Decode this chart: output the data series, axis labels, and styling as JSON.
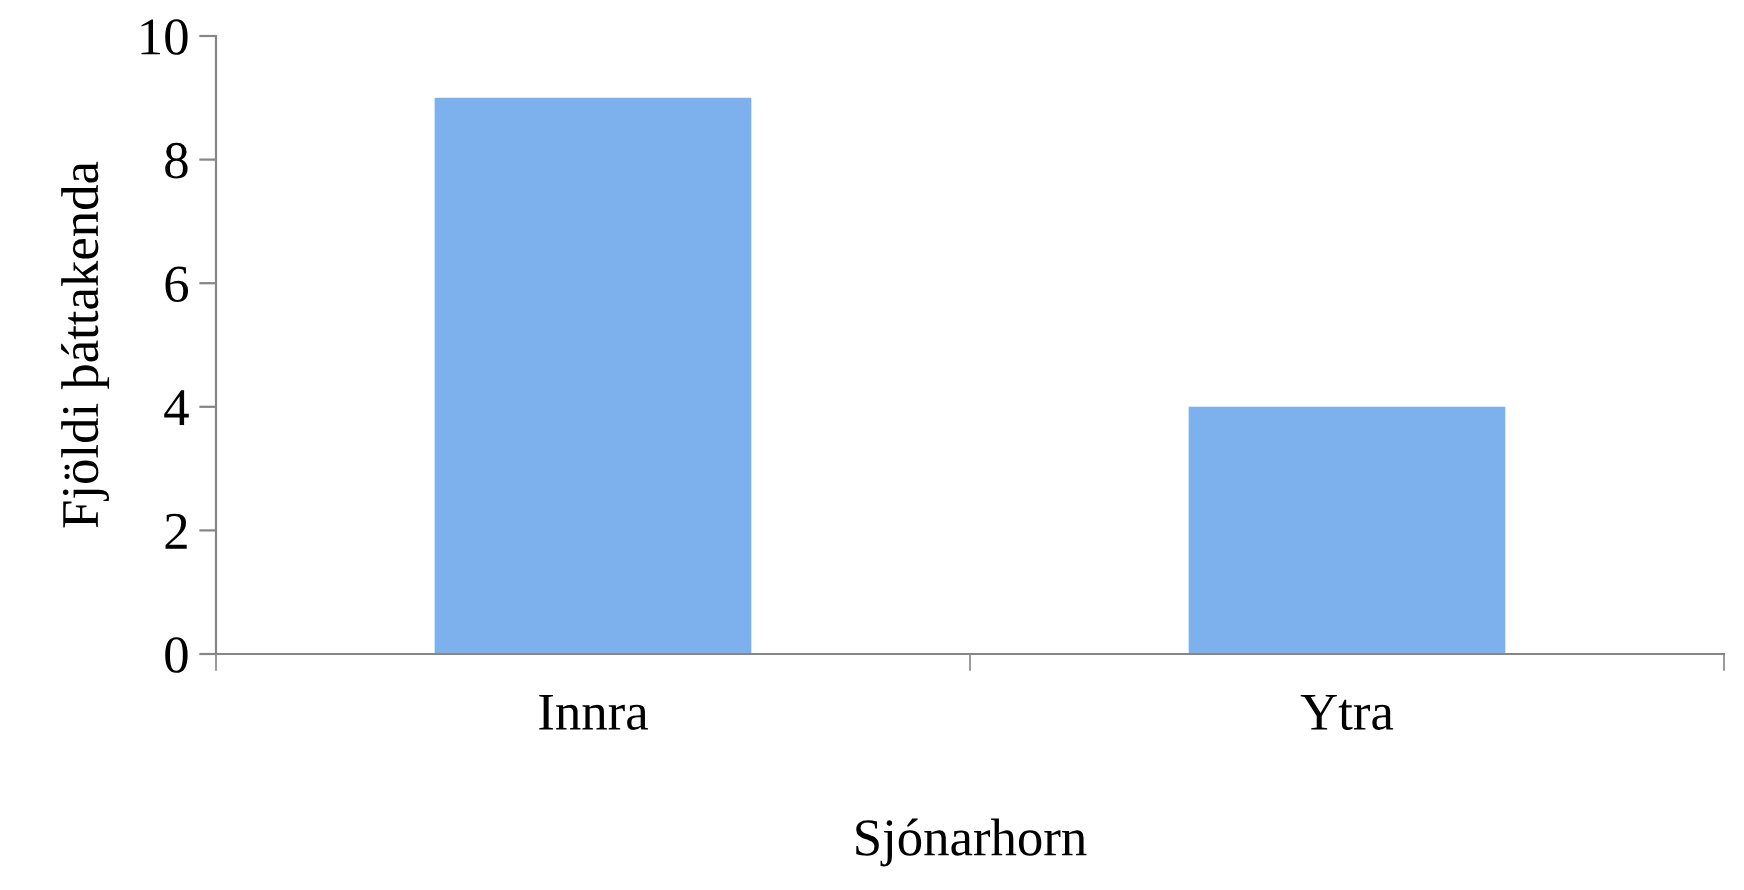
{
  "chart_data": {
    "type": "bar",
    "xlabel": "Sjónarhorn",
    "ylabel": "Fjöldi þáttakenda",
    "categories": [
      "Innra",
      "Ytra"
    ],
    "values": [
      9,
      4
    ],
    "color": "#7db1ee",
    "ylim": [
      0,
      10
    ],
    "yticks": [
      0,
      2,
      4,
      6,
      8,
      10
    ],
    "grid": false,
    "legend": false
  }
}
